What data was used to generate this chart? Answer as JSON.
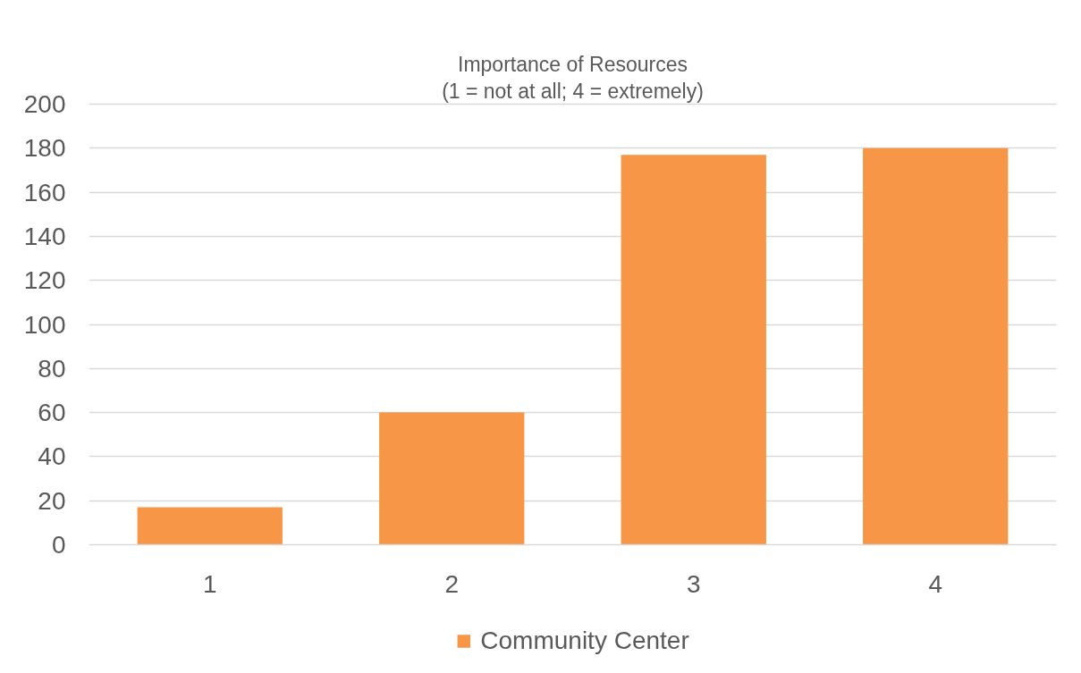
{
  "chart_data": {
    "type": "bar",
    "title": "Importance of Resources",
    "subtitle": "(1 = not at all; 4 = extremely)",
    "categories": [
      "1",
      "2",
      "3",
      "4"
    ],
    "series": [
      {
        "name": "Community Center",
        "color": "#f79646",
        "values": [
          17,
          60,
          177,
          180
        ]
      }
    ],
    "ylim": [
      0,
      200
    ],
    "yticks": [
      0,
      20,
      40,
      60,
      80,
      100,
      120,
      140,
      160,
      180,
      200
    ],
    "grid": "y",
    "legend": "bottom"
  }
}
